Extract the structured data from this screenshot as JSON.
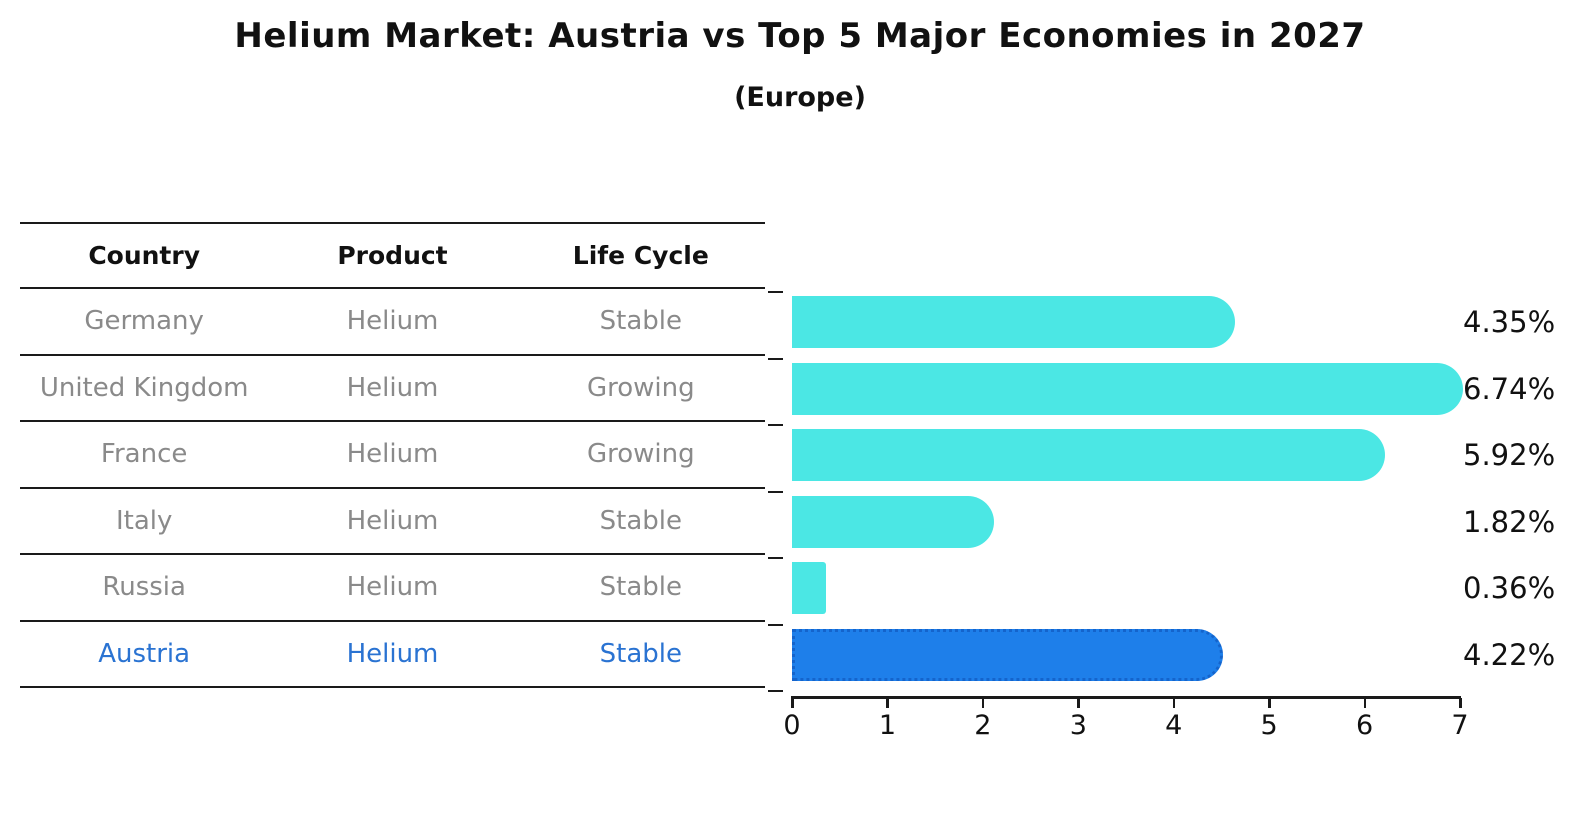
{
  "title": "Helium Market: Austria vs Top 5 Major Economies in 2027",
  "subtitle": "(Europe)",
  "table": {
    "headers": [
      "Country",
      "Product",
      "Life Cycle"
    ],
    "rows": [
      {
        "country": "Germany",
        "product": "Helium",
        "life_cycle": "Stable",
        "highlighted": false
      },
      {
        "country": "United Kingdom",
        "product": "Helium",
        "life_cycle": "Growing",
        "highlighted": false
      },
      {
        "country": "France",
        "product": "Helium",
        "life_cycle": "Growing",
        "highlighted": false
      },
      {
        "country": "Italy",
        "product": "Helium",
        "life_cycle": "Stable",
        "highlighted": false
      },
      {
        "country": "Russia",
        "product": "Helium",
        "life_cycle": "Stable",
        "highlighted": false
      },
      {
        "country": "Austria",
        "product": "Helium",
        "life_cycle": "Stable",
        "highlighted": true
      }
    ]
  },
  "chart_data": {
    "type": "bar",
    "orientation": "horizontal",
    "title": "Helium Market: Austria vs Top 5 Major Economies in 2027",
    "subtitle": "(Europe)",
    "categories": [
      "Germany",
      "United Kingdom",
      "France",
      "Italy",
      "Russia",
      "Austria"
    ],
    "values": [
      4.35,
      6.74,
      5.92,
      1.82,
      0.36,
      4.22
    ],
    "value_labels": [
      "4.35%",
      "6.74%",
      "5.92%",
      "1.82%",
      "0.36%",
      "4.22%"
    ],
    "xlabel": "",
    "ylabel": "",
    "xlim": [
      0,
      7
    ],
    "xticks": [
      "0",
      "1",
      "2",
      "3",
      "4",
      "5",
      "6",
      "7"
    ],
    "grid": false,
    "legend": false,
    "highlight": {
      "category": "Austria",
      "index": 5,
      "style": "dotted-outline"
    }
  },
  "colors": {
    "bar": "#4be7e4",
    "highlight_bar": "#1e7fea",
    "highlight_border": "#1464cc",
    "highlight_text": "#2a73d2",
    "row_text": "#8a8a8a",
    "header_text": "#111111",
    "axis_line": "#1a1a1a",
    "value_text": "#111111",
    "background": "#ffffff"
  }
}
